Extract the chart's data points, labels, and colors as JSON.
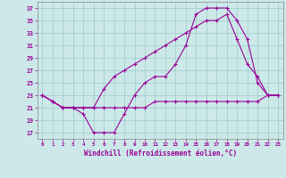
{
  "xlabel": "Windchill (Refroidissement éolien,°C)",
  "bg_color": "#cce8e8",
  "line_color": "#990099",
  "grid_color": "#99cccc",
  "xlim": [
    -0.5,
    23.5
  ],
  "ylim": [
    16,
    38
  ],
  "yticks": [
    17,
    19,
    21,
    23,
    25,
    27,
    29,
    31,
    33,
    35,
    37
  ],
  "xticks": [
    0,
    1,
    2,
    3,
    4,
    5,
    6,
    7,
    8,
    9,
    10,
    11,
    12,
    13,
    14,
    15,
    16,
    17,
    18,
    19,
    20,
    21,
    22,
    23
  ],
  "line1_x": [
    0,
    1,
    2,
    3,
    4,
    5,
    6,
    7,
    8,
    9,
    10,
    11,
    12,
    13,
    14,
    15,
    16,
    17,
    18,
    19,
    20,
    21,
    22,
    23
  ],
  "line1_y": [
    23,
    22,
    21,
    21,
    20,
    17,
    17,
    17,
    20,
    23,
    25,
    26,
    26,
    28,
    31,
    36,
    37,
    37,
    37,
    35,
    32,
    25,
    23,
    23
  ],
  "line2_x": [
    0,
    1,
    2,
    3,
    4,
    5,
    6,
    7,
    8,
    9,
    10,
    11,
    12,
    13,
    14,
    15,
    16,
    17,
    18,
    19,
    20,
    21,
    22,
    23
  ],
  "line2_y": [
    23,
    22,
    21,
    21,
    21,
    21,
    24,
    26,
    27,
    28,
    29,
    30,
    31,
    32,
    33,
    34,
    35,
    35,
    36,
    32,
    28,
    26,
    23,
    23
  ],
  "line3_x": [
    0,
    1,
    2,
    3,
    4,
    5,
    6,
    7,
    8,
    9,
    10,
    11,
    12,
    13,
    14,
    15,
    16,
    17,
    18,
    19,
    20,
    21,
    22,
    23
  ],
  "line3_y": [
    23,
    22,
    21,
    21,
    21,
    21,
    21,
    21,
    21,
    21,
    21,
    22,
    22,
    22,
    22,
    22,
    22,
    22,
    22,
    22,
    22,
    22,
    23,
    23
  ]
}
